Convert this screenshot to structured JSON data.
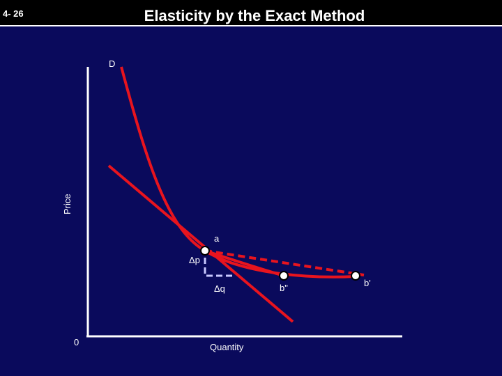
{
  "header": {
    "slide_number": "4- 26",
    "title": "Elasticity by the Exact Method"
  },
  "diagram": {
    "y_axis_label": "Price",
    "x_axis_label": "Quantity",
    "origin_label": "0",
    "curve_label": "D",
    "point_a_label": "a",
    "point_b_prime_label": "b'",
    "point_b_double_prime_label": "b\"",
    "delta_p_label": "Δp",
    "delta_q_label": "Δq",
    "colors": {
      "background": "#0a0a5c",
      "curve": "#e8141e",
      "axis": "#ffffff",
      "dashed_step": "#c8c8ff"
    }
  }
}
